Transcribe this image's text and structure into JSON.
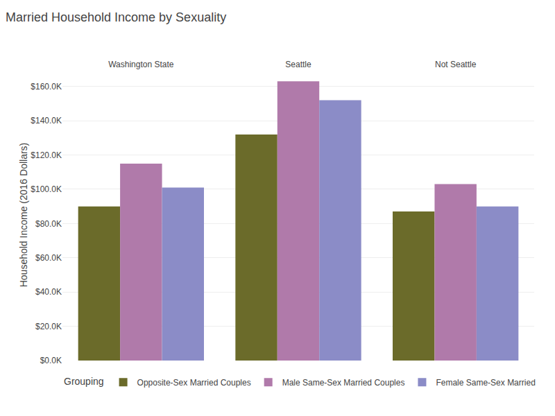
{
  "chart_data": {
    "type": "bar",
    "title": "Married Household Income by Sexuality",
    "categories": [
      "Washington State",
      "Seattle",
      "Not Seattle"
    ],
    "series": [
      {
        "name": "Opposite-Sex Married Couples",
        "color": "#6b6b2a",
        "values": [
          90000,
          132000,
          87000
        ]
      },
      {
        "name": "Male Same-Sex Married Couples",
        "color": "#b07aaa",
        "values": [
          115000,
          163000,
          103000
        ]
      },
      {
        "name": "Female Same-Sex Married",
        "color": "#8b8cc7",
        "values": [
          101000,
          152000,
          90000
        ]
      }
    ],
    "ylabel": "Household Income (2016 Dollars)",
    "ylim": [
      0,
      170000
    ],
    "yticks": [
      {
        "value": 0,
        "label": "$0.0K"
      },
      {
        "value": 20000,
        "label": "$20.0K"
      },
      {
        "value": 40000,
        "label": "$40.0K"
      },
      {
        "value": 60000,
        "label": "$60.0K"
      },
      {
        "value": 80000,
        "label": "$80.0K"
      },
      {
        "value": 100000,
        "label": "$100.0K"
      },
      {
        "value": 120000,
        "label": "$120.0K"
      },
      {
        "value": 140000,
        "label": "$140.0K"
      },
      {
        "value": 160000,
        "label": "$160.0K"
      }
    ],
    "legend_title": "Grouping",
    "legend": "bottom",
    "grid": true
  }
}
